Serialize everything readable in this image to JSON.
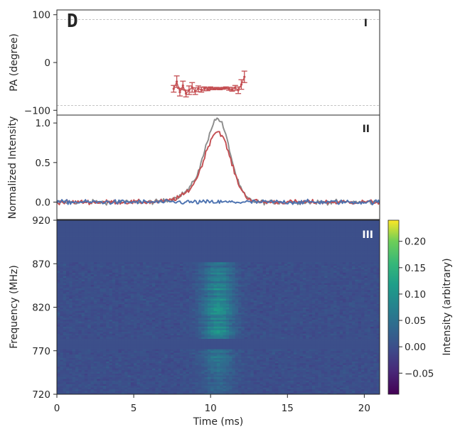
{
  "chart_data": [
    {
      "panel": "I",
      "type": "scatter",
      "panel_letter": "D",
      "ylabel": "PA (degree)",
      "ylim": [
        -110,
        110
      ],
      "xlim": [
        0,
        21
      ],
      "yticks": [
        100,
        0,
        -100
      ],
      "yticklabels": [
        "100",
        "0",
        "−100"
      ],
      "reference_lines": [
        90,
        -90
      ],
      "color": "#c44e52",
      "points": [
        {
          "x": 7.6,
          "y": -55,
          "err": 7
        },
        {
          "x": 7.8,
          "y": -40,
          "err": 12
        },
        {
          "x": 8.0,
          "y": -62,
          "err": 8
        },
        {
          "x": 8.2,
          "y": -48,
          "err": 9
        },
        {
          "x": 8.4,
          "y": -65,
          "err": 7
        },
        {
          "x": 8.6,
          "y": -58,
          "err": 9
        },
        {
          "x": 8.8,
          "y": -52,
          "err": 10
        },
        {
          "x": 9.0,
          "y": -60,
          "err": 7
        },
        {
          "x": 9.2,
          "y": -55,
          "err": 6
        },
        {
          "x": 9.4,
          "y": -57,
          "err": 5
        },
        {
          "x": 9.6,
          "y": -55,
          "err": 4
        },
        {
          "x": 9.8,
          "y": -56,
          "err": 3
        },
        {
          "x": 10.0,
          "y": -54,
          "err": 3
        },
        {
          "x": 10.2,
          "y": -55,
          "err": 2
        },
        {
          "x": 10.4,
          "y": -54,
          "err": 2
        },
        {
          "x": 10.6,
          "y": -55,
          "err": 2
        },
        {
          "x": 10.8,
          "y": -54,
          "err": 2
        },
        {
          "x": 11.0,
          "y": -53,
          "err": 2
        },
        {
          "x": 11.2,
          "y": -55,
          "err": 3
        },
        {
          "x": 11.4,
          "y": -56,
          "err": 4
        },
        {
          "x": 11.6,
          "y": -53,
          "err": 5
        },
        {
          "x": 11.8,
          "y": -58,
          "err": 7
        },
        {
          "x": 12.0,
          "y": -46,
          "err": 10
        },
        {
          "x": 12.2,
          "y": -30,
          "err": 12
        }
      ]
    },
    {
      "panel": "II",
      "type": "line",
      "ylabel": "Normalized Intensity",
      "ylim": [
        -0.22,
        1.1
      ],
      "xlim": [
        0,
        21
      ],
      "yticks": [
        1.0,
        0.5,
        0.0
      ],
      "yticklabels": [
        "1.0",
        "0.5",
        "0.0"
      ],
      "series": [
        {
          "color": "#8c8c8c",
          "role": "total intensity",
          "peak": 1.0,
          "center": 10.5,
          "width": 0.78,
          "wing": 0.14
        },
        {
          "color": "#c44e52",
          "role": "linear polarization",
          "peak": 0.85,
          "center": 10.5,
          "width": 0.82,
          "wing": 0.11
        },
        {
          "color": "#4c72b0",
          "role": "circular polarization",
          "peak": 0.0,
          "center": 10.5,
          "width": 0.8,
          "wing": 0.0
        }
      ]
    },
    {
      "panel": "III",
      "type": "heatmap",
      "ylabel": "Frequency (MHz)",
      "xlabel": "Time (ms)",
      "xlim": [
        0,
        21
      ],
      "ylim": [
        720,
        920
      ],
      "xticks": [
        0,
        5,
        10,
        15,
        20
      ],
      "yticks": [
        920,
        870,
        820,
        770,
        720
      ],
      "colormap": "viridis",
      "masked_bands_MHz": [
        [
          872,
          920
        ],
        [
          772,
          783
        ]
      ],
      "burst_center_ms": 10.5,
      "burst_width_ms": 0.7,
      "colorbar": {
        "label": "Intensity (arbitrary)",
        "range": [
          -0.09,
          0.24
        ],
        "ticks": [
          0.2,
          0.15,
          0.1,
          0.05,
          0.0,
          -0.05
        ],
        "ticklabels": [
          "0.20",
          "0.15",
          "0.10",
          "0.05",
          "0.00",
          "−0.05"
        ]
      }
    }
  ]
}
